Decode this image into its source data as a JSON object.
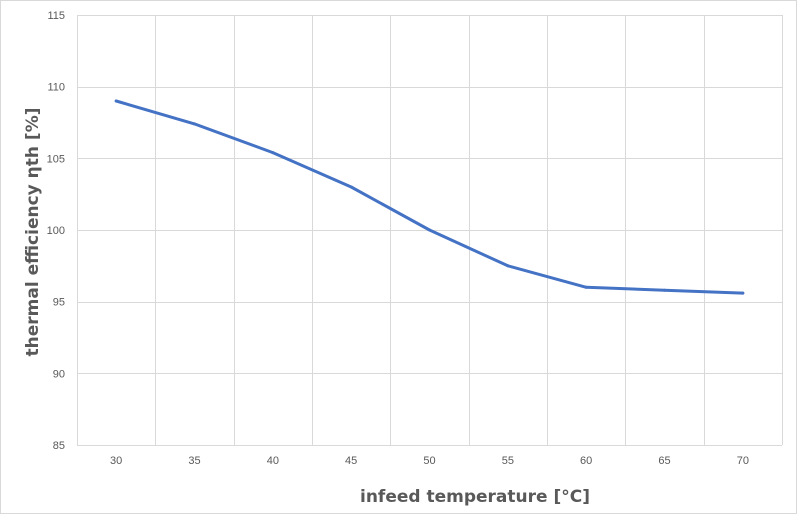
{
  "chart_data": {
    "type": "line",
    "title": "",
    "xlabel": "infeed temperature [°C]",
    "ylabel": "thermal efficiency ηth [%]",
    "x": [
      30,
      35,
      40,
      45,
      50,
      55,
      60,
      65,
      70
    ],
    "xlim": [
      27.5,
      72.5
    ],
    "ylim": [
      85,
      115
    ],
    "yticks": [
      85,
      90,
      95,
      100,
      105,
      110,
      115
    ],
    "grid": true,
    "legend": "none",
    "series": [
      {
        "values": [
          109.0,
          107.4,
          105.4,
          103.0,
          100.0,
          97.5,
          96.0,
          95.8,
          95.6
        ],
        "color": "#4472c4"
      }
    ],
    "colors": {
      "grid": "#d9d9d9",
      "text": "#595959",
      "line": "#4472c4"
    }
  }
}
